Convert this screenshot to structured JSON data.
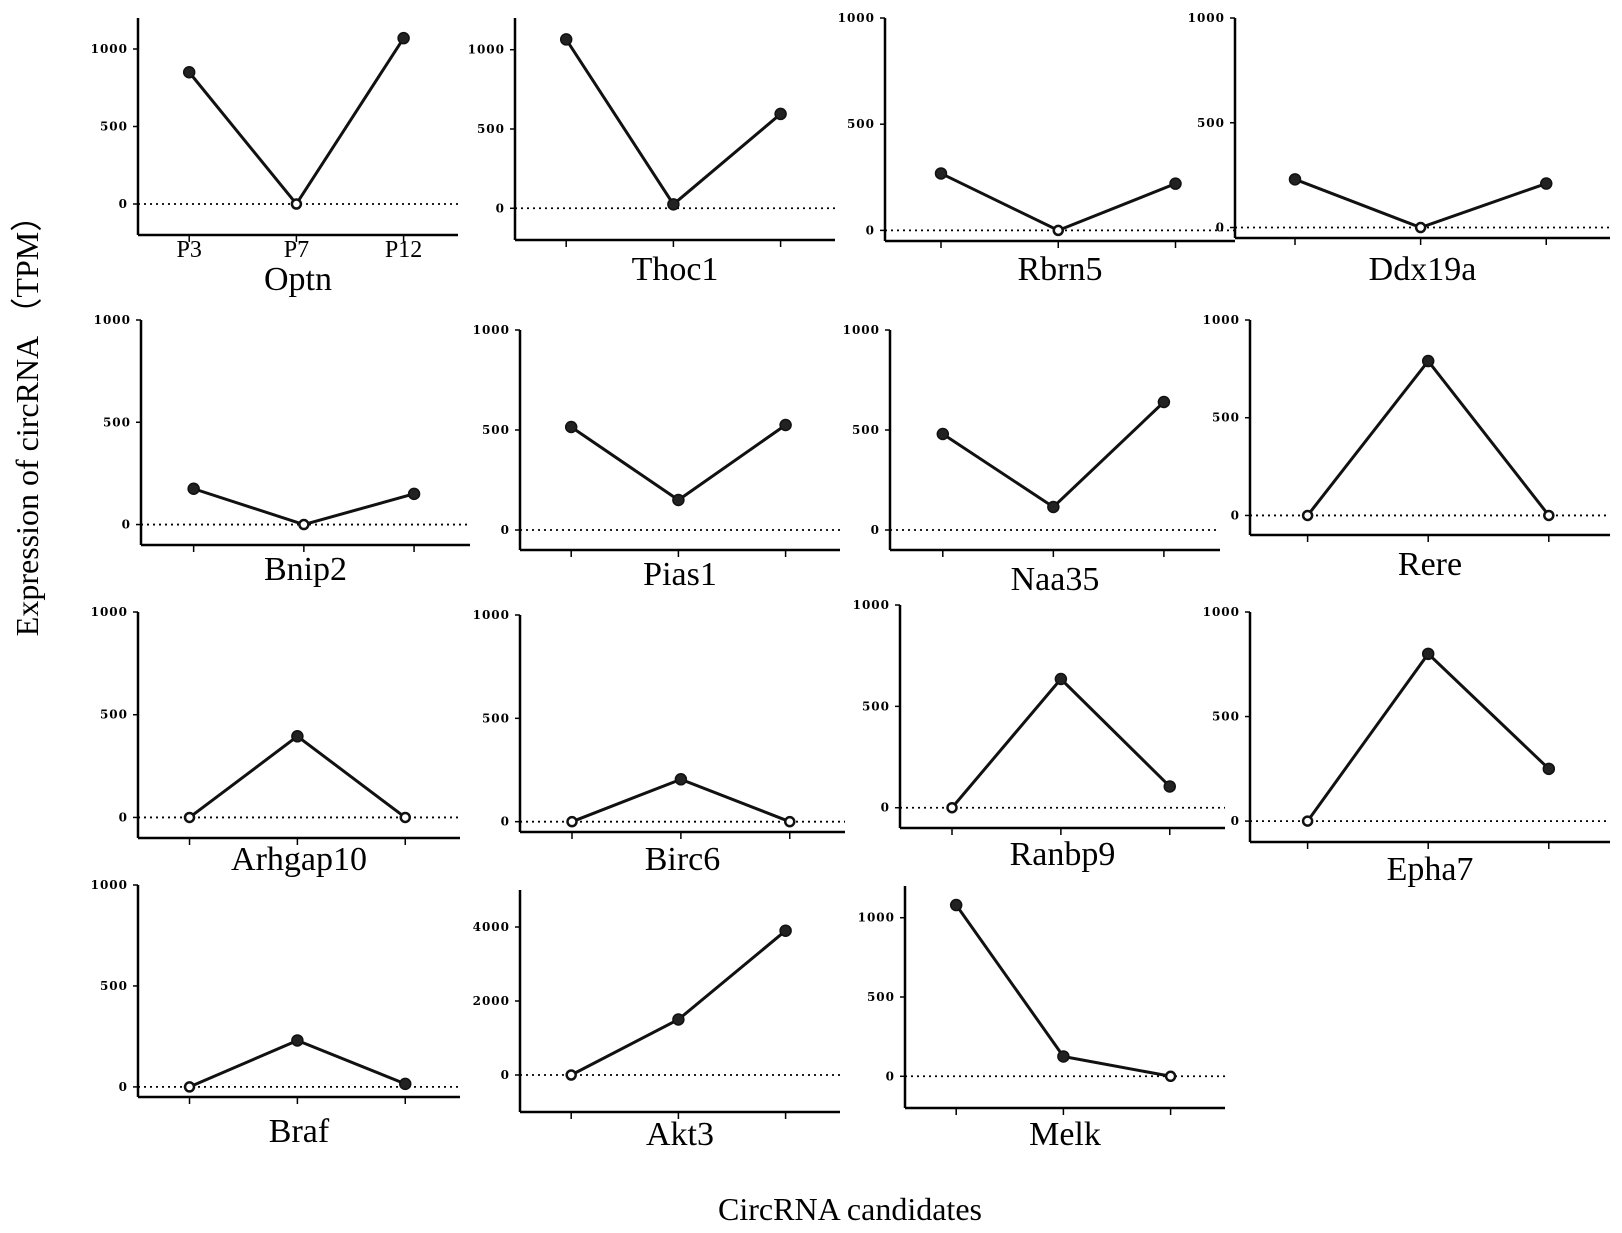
{
  "figure": {
    "ylabel": "Expression of circRNA （TPM）",
    "xlabel": "CircRNA candidates"
  },
  "chart_data": [
    {
      "type": "line",
      "title": "Optn",
      "categories": [
        "P3",
        "P7",
        "P12"
      ],
      "values": [
        850,
        0,
        1070
      ],
      "ylim": [
        -200,
        1200
      ],
      "yticks": [
        0,
        500,
        1000
      ],
      "xtick_labels": [
        "P3",
        "P7",
        "P12"
      ],
      "grid": false
    },
    {
      "type": "line",
      "title": "Thoc1",
      "categories": [
        "P3",
        "P7",
        "P12"
      ],
      "values": [
        1065,
        25,
        595
      ],
      "ylim": [
        -200,
        1200
      ],
      "yticks": [
        0,
        500,
        1000
      ],
      "grid": false
    },
    {
      "type": "line",
      "title": "Rbrn5",
      "categories": [
        "P3",
        "P7",
        "P12"
      ],
      "values": [
        268,
        0,
        220
      ],
      "ylim": [
        -50,
        1000
      ],
      "yticks": [
        0,
        500,
        1000
      ],
      "grid": false
    },
    {
      "type": "line",
      "title": "Ddx19a",
      "categories": [
        "P3",
        "P7",
        "P12"
      ],
      "values": [
        230,
        0,
        210
      ],
      "ylim": [
        -50,
        1000
      ],
      "yticks": [
        0,
        500,
        1000
      ],
      "grid": false
    },
    {
      "type": "line",
      "title": "Bnip2",
      "categories": [
        "P3",
        "P7",
        "P12"
      ],
      "values": [
        175,
        0,
        150
      ],
      "ylim": [
        -100,
        1000
      ],
      "yticks": [
        0,
        500,
        1000
      ],
      "grid": false
    },
    {
      "type": "line",
      "title": "Pias1",
      "categories": [
        "P3",
        "P7",
        "P12"
      ],
      "values": [
        515,
        150,
        525
      ],
      "ylim": [
        -100,
        1000
      ],
      "yticks": [
        0,
        500,
        1000
      ],
      "grid": false
    },
    {
      "type": "line",
      "title": "Naa35",
      "categories": [
        "P3",
        "P7",
        "P12"
      ],
      "values": [
        480,
        115,
        640
      ],
      "ylim": [
        -100,
        1000
      ],
      "yticks": [
        0,
        500,
        1000
      ],
      "grid": false
    },
    {
      "type": "line",
      "title": "Rere",
      "categories": [
        "P3",
        "P7",
        "P12"
      ],
      "values": [
        0,
        790,
        0
      ],
      "ylim": [
        -100,
        1000
      ],
      "yticks": [
        0,
        500,
        1000
      ],
      "grid": false
    },
    {
      "type": "line",
      "title": "Arhgap10",
      "categories": [
        "P3",
        "P7",
        "P12"
      ],
      "values": [
        0,
        395,
        0
      ],
      "ylim": [
        -100,
        1000
      ],
      "yticks": [
        0,
        500,
        1000
      ],
      "grid": false
    },
    {
      "type": "line",
      "title": "Birc6",
      "categories": [
        "P3",
        "P7",
        "P12"
      ],
      "values": [
        0,
        205,
        0
      ],
      "ylim": [
        -50,
        1000
      ],
      "yticks": [
        0,
        500,
        1000
      ],
      "grid": false
    },
    {
      "type": "line",
      "title": "Ranbp9",
      "categories": [
        "P3",
        "P7",
        "P12"
      ],
      "values": [
        0,
        635,
        105
      ],
      "ylim": [
        -100,
        1000
      ],
      "yticks": [
        0,
        500,
        1000
      ],
      "grid": false
    },
    {
      "type": "line",
      "title": "Epha7",
      "categories": [
        "P3",
        "P7",
        "P12"
      ],
      "values": [
        0,
        800,
        250
      ],
      "ylim": [
        -100,
        1000
      ],
      "yticks": [
        0,
        500,
        1000
      ],
      "grid": false
    },
    {
      "type": "line",
      "title": "Braf",
      "categories": [
        "P3",
        "P7",
        "P12"
      ],
      "values": [
        0,
        230,
        15
      ],
      "ylim": [
        -50,
        1000
      ],
      "yticks": [
        0,
        500,
        1000
      ],
      "grid": false
    },
    {
      "type": "line",
      "title": "Akt3",
      "categories": [
        "P3",
        "P7",
        "P12"
      ],
      "values": [
        0,
        1500,
        3900
      ],
      "ylim": [
        -1000,
        5000
      ],
      "yticks": [
        0,
        2000,
        4000
      ],
      "grid": false
    },
    {
      "type": "line",
      "title": "Melk",
      "categories": [
        "P3",
        "P7",
        "P12"
      ],
      "values": [
        1080,
        125,
        0
      ],
      "ylim": [
        -200,
        1200
      ],
      "yticks": [
        0,
        500,
        1000
      ],
      "grid": false
    }
  ]
}
